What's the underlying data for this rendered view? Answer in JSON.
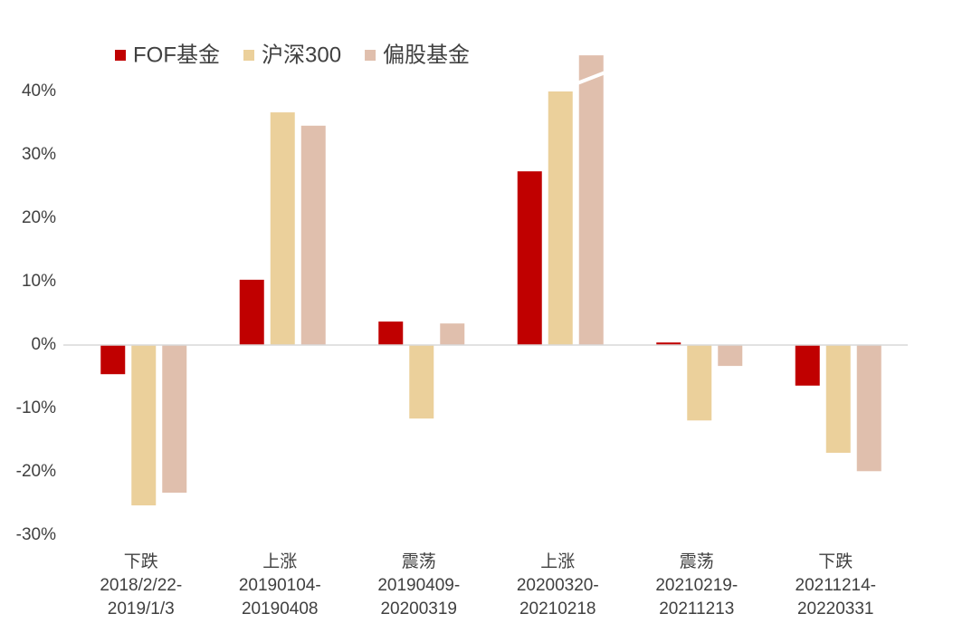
{
  "chart_data": {
    "type": "bar",
    "categories": [
      [
        "下跌",
        "2018/2/22-",
        "2019/1/3"
      ],
      [
        "上涨",
        "20190104-",
        "20190408"
      ],
      [
        "震荡",
        "20190409-",
        "20200319"
      ],
      [
        "上涨",
        "20200320-",
        "20210218"
      ],
      [
        "震荡",
        "20210219-",
        "20211213"
      ],
      [
        "下跌",
        "20211214-",
        "20220331"
      ]
    ],
    "series": [
      {
        "name": "FOF基金",
        "color": "#c00000",
        "values": [
          -4.6,
          10.3,
          3.7,
          27.4,
          0.4,
          -6.4
        ]
      },
      {
        "name": "沪深300",
        "color": "#ebd09b",
        "values": [
          -25.3,
          36.7,
          -11.6,
          40.0,
          -11.9,
          -17.0
        ]
      },
      {
        "name": "偏股基金",
        "color": "#e0bfad",
        "values": [
          -23.3,
          34.6,
          3.4,
          45.7,
          -3.3,
          -19.9
        ]
      }
    ],
    "ylim": [
      -30,
      46
    ],
    "yticks": [
      {
        "value": -30,
        "label": "-30%"
      },
      {
        "value": -20,
        "label": "-20%"
      },
      {
        "value": -10,
        "label": "-10%"
      },
      {
        "value": 0,
        "label": "0%"
      },
      {
        "value": 10,
        "label": "10%"
      },
      {
        "value": 20,
        "label": "20%"
      },
      {
        "value": 30,
        "label": "30%"
      },
      {
        "value": 40,
        "label": "40%"
      }
    ],
    "grid": false,
    "legend": "top-left"
  }
}
